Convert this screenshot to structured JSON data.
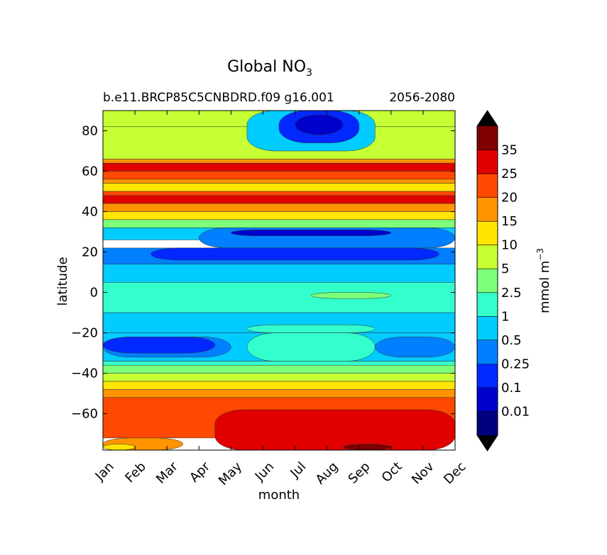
{
  "chart_data": {
    "type": "heatmap",
    "title": "Global NO",
    "title_subscript": "3",
    "subtitle_left": "b.e11.BRCP85C5CNBDRD.f09 g16.001",
    "subtitle_right": "2056-2080",
    "xlabel": "month",
    "ylabel": "latitude",
    "x_ticks": [
      "Jan",
      "Feb",
      "Mar",
      "Apr",
      "May",
      "Jun",
      "Jul",
      "Aug",
      "Sep",
      "Oct",
      "Nov",
      "Dec"
    ],
    "y_ticks": [
      {
        "value": 80,
        "label": "80"
      },
      {
        "value": 60,
        "label": "60"
      },
      {
        "value": 40,
        "label": "40"
      },
      {
        "value": 20,
        "label": "20"
      },
      {
        "value": 0,
        "label": "0"
      },
      {
        "value": -20,
        "label": "−20"
      },
      {
        "value": -40,
        "label": "−40"
      },
      {
        "value": -60,
        "label": "−60"
      }
    ],
    "ylim": [
      -78,
      90
    ],
    "colorbar": {
      "label": "mmol m",
      "label_superscript": "−3",
      "levels": [
        "0.01",
        "0.1",
        "0.25",
        "0.5",
        "1",
        "2.5",
        "5",
        "10",
        "15",
        "20",
        "25",
        "35"
      ],
      "colors": [
        "#00007f",
        "#0000cd",
        "#0028ff",
        "#0080ff",
        "#00ccff",
        "#33ffcc",
        "#7dff7a",
        "#c6ff33",
        "#ffe500",
        "#ff9400",
        "#ff4800",
        "#e00000",
        "#7f0000"
      ],
      "extend": "both",
      "under_color": "#000000",
      "over_color": "#000000",
      "levels_note": "13 bins listed low to high"
    },
    "bands": [
      {
        "lat": [
          82,
          90
        ],
        "months": [
          0,
          11
        ],
        "bin": 7
      },
      {
        "lat": [
          66,
          82
        ],
        "months": [
          0,
          11
        ],
        "bin": 7
      },
      {
        "lat": [
          70,
          90
        ],
        "months": [
          4.5,
          8.5
        ],
        "bin": 4
      },
      {
        "lat": [
          74,
          90
        ],
        "months": [
          5.5,
          8
        ],
        "bin": 2
      },
      {
        "lat": [
          78,
          88
        ],
        "months": [
          6,
          7.5
        ],
        "bin": 1
      },
      {
        "lat": [
          64,
          66
        ],
        "months": [
          0,
          11
        ],
        "bin": 9
      },
      {
        "lat": [
          60,
          64
        ],
        "months": [
          0,
          11
        ],
        "bin": 11
      },
      {
        "lat": [
          56,
          60
        ],
        "months": [
          0,
          11
        ],
        "bin": 10
      },
      {
        "lat": [
          54,
          56
        ],
        "months": [
          0,
          11
        ],
        "bin": 9
      },
      {
        "lat": [
          50,
          54
        ],
        "months": [
          0,
          11
        ],
        "bin": 8
      },
      {
        "lat": [
          48,
          50
        ],
        "months": [
          0,
          11
        ],
        "bin": 10
      },
      {
        "lat": [
          44,
          48
        ],
        "months": [
          0,
          11
        ],
        "bin": 11
      },
      {
        "lat": [
          40,
          44
        ],
        "months": [
          0,
          11
        ],
        "bin": 9
      },
      {
        "lat": [
          36,
          40
        ],
        "months": [
          0,
          11
        ],
        "bin": 8
      },
      {
        "lat": [
          32,
          36
        ],
        "months": [
          0,
          11
        ],
        "bin": 6
      },
      {
        "lat": [
          26,
          32
        ],
        "months": [
          0,
          11
        ],
        "bin": 4
      },
      {
        "lat": [
          22,
          32
        ],
        "months": [
          3,
          11
        ],
        "bin": 3
      },
      {
        "lat": [
          14,
          22
        ],
        "months": [
          0,
          11
        ],
        "bin": 3
      },
      {
        "lat": [
          16,
          22
        ],
        "months": [
          1.5,
          10.5
        ],
        "bin": 2
      },
      {
        "lat": [
          28,
          31
        ],
        "months": [
          4,
          9
        ],
        "bin": 1
      },
      {
        "lat": [
          5,
          14
        ],
        "months": [
          0,
          11
        ],
        "bin": 4
      },
      {
        "lat": [
          -10,
          5
        ],
        "months": [
          0,
          11
        ],
        "bin": 5
      },
      {
        "lat": [
          -3,
          0
        ],
        "months": [
          6.5,
          9
        ],
        "bin": 6
      },
      {
        "lat": [
          -20,
          -10
        ],
        "months": [
          0,
          11
        ],
        "bin": 4
      },
      {
        "lat": [
          -20,
          -16
        ],
        "months": [
          4.5,
          8.5
        ],
        "bin": 5
      },
      {
        "lat": [
          -34,
          -20
        ],
        "months": [
          0,
          11
        ],
        "bin": 4
      },
      {
        "lat": [
          -34,
          -20
        ],
        "months": [
          4.5,
          8.5
        ],
        "bin": 5
      },
      {
        "lat": [
          -32,
          -22
        ],
        "months": [
          0,
          4
        ],
        "bin": 3
      },
      {
        "lat": [
          -32,
          -22
        ],
        "months": [
          8.5,
          11
        ],
        "bin": 3
      },
      {
        "lat": [
          -30,
          -22
        ],
        "months": [
          0,
          3.5
        ],
        "bin": 2
      },
      {
        "lat": [
          -36,
          -34
        ],
        "months": [
          0,
          11
        ],
        "bin": 5
      },
      {
        "lat": [
          -40,
          -36
        ],
        "months": [
          0,
          11
        ],
        "bin": 6
      },
      {
        "lat": [
          -44,
          -40
        ],
        "months": [
          0,
          11
        ],
        "bin": 7
      },
      {
        "lat": [
          -48,
          -44
        ],
        "months": [
          0,
          11
        ],
        "bin": 8
      },
      {
        "lat": [
          -52,
          -48
        ],
        "months": [
          0,
          11
        ],
        "bin": 9
      },
      {
        "lat": [
          -72,
          -52
        ],
        "months": [
          0,
          11
        ],
        "bin": 10
      },
      {
        "lat": [
          -78,
          -58
        ],
        "months": [
          3.5,
          11
        ],
        "bin": 11
      },
      {
        "lat": [
          -78,
          -75
        ],
        "months": [
          7.5,
          9
        ],
        "bin": 12
      },
      {
        "lat": [
          -78,
          -72
        ],
        "months": [
          0,
          2.5
        ],
        "bin": 9
      },
      {
        "lat": [
          -78,
          -75
        ],
        "months": [
          0,
          1
        ],
        "bin": 8
      }
    ]
  }
}
